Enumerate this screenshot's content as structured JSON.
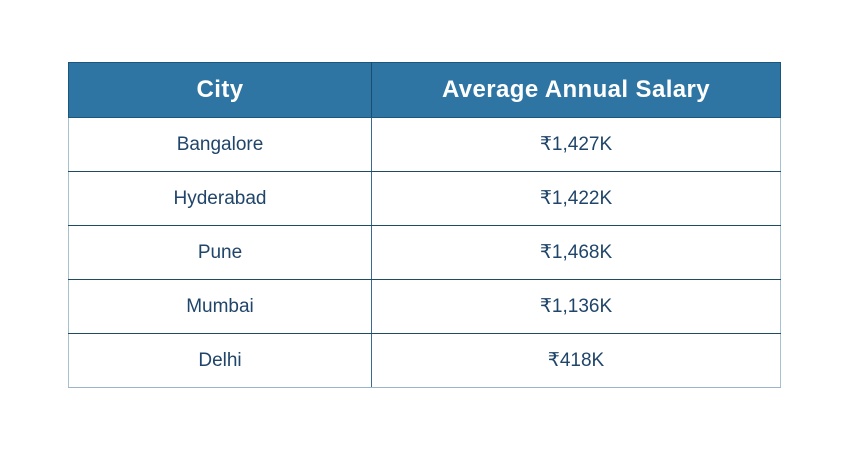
{
  "table": {
    "headers": {
      "city": "City",
      "salary": "Average Annual Salary"
    },
    "rows": [
      {
        "city": "Bangalore",
        "salary": "₹1,427K"
      },
      {
        "city": "Hyderabad",
        "salary": "₹1,422K"
      },
      {
        "city": "Pune",
        "salary": "₹1,468K"
      },
      {
        "city": "Mumbai",
        "salary": "₹1,136K"
      },
      {
        "city": "Delhi",
        "salary": "₹418K"
      }
    ]
  },
  "chart_data": {
    "type": "table",
    "columns": [
      "City",
      "Average Annual Salary"
    ],
    "rows": [
      [
        "Bangalore",
        "₹1,427K"
      ],
      [
        "Hyderabad",
        "₹1,422K"
      ],
      [
        "Pune",
        "₹1,468K"
      ],
      [
        "Mumbai",
        "₹1,136K"
      ],
      [
        "Delhi",
        "₹418K"
      ]
    ],
    "values_inr_thousands": {
      "Bangalore": 1427,
      "Hyderabad": 1422,
      "Pune": 1468,
      "Mumbai": 1136,
      "Delhi": 418
    },
    "currency": "INR"
  },
  "colors": {
    "header_bg": "#2e75a3",
    "header_text": "#ffffff",
    "body_text": "#20456a",
    "inner_border": "#1d4c63",
    "header_border": "#1c567c",
    "outer_border": "#a9c0ce",
    "page_background": "#ffffff"
  }
}
